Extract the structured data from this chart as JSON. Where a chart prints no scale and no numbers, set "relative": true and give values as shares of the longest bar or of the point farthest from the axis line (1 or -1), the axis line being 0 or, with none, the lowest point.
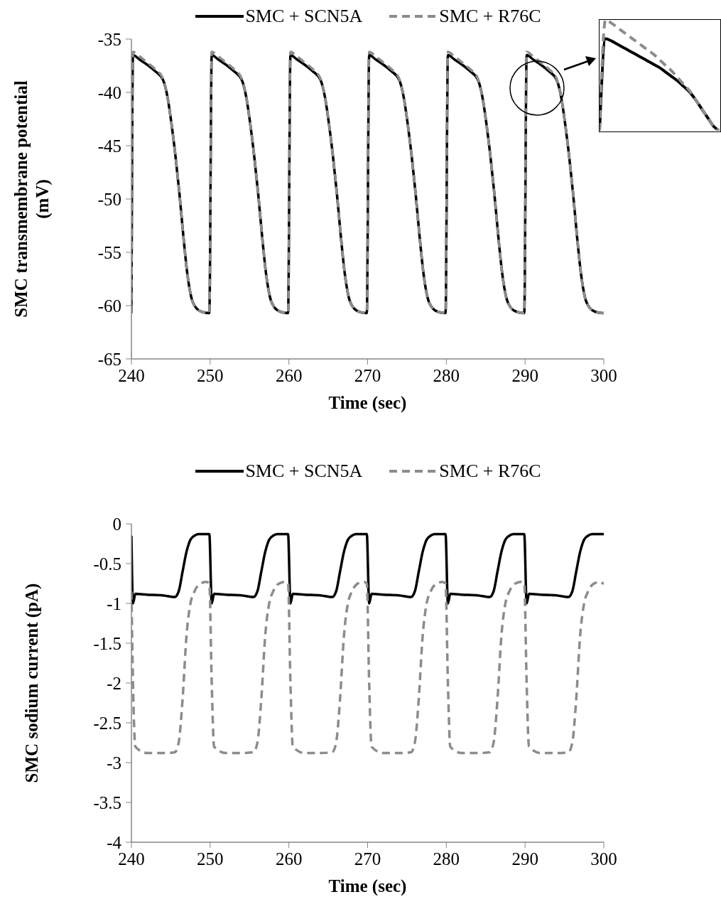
{
  "chart_data": [
    {
      "type": "line",
      "xlabel": "Time (sec)",
      "ylabel": "SMC transmembrane potential\n(mV)",
      "legend": "top",
      "xlim": [
        240,
        300
      ],
      "xticks": [
        240,
        250,
        260,
        270,
        280,
        290,
        300
      ],
      "ylim": [
        -65,
        -35
      ],
      "yticks": [
        -65,
        -60,
        -55,
        -50,
        -45,
        -40,
        -35
      ],
      "x": [
        240,
        240.2,
        241,
        242,
        243,
        244,
        244.6,
        245.1,
        245.6,
        246.1,
        246.6,
        247.1,
        247.6,
        248.2,
        249,
        249.9,
        250.2,
        251,
        252,
        253,
        254,
        254.6,
        255.1,
        255.6,
        256.1,
        256.6,
        257.1,
        257.6,
        258.2,
        259,
        259.9,
        260.2,
        261,
        262,
        263,
        264,
        264.6,
        265.1,
        265.6,
        266.1,
        266.6,
        267.1,
        267.6,
        268.2,
        269,
        269.9,
        270.2,
        271,
        272,
        273,
        274,
        274.6,
        275.1,
        275.6,
        276.1,
        276.6,
        277.1,
        277.6,
        278.2,
        279,
        279.9,
        280.2,
        281,
        282,
        283,
        284,
        284.6,
        285.1,
        285.6,
        286.1,
        286.6,
        287.1,
        287.6,
        288.2,
        289,
        289.9,
        290.2,
        291,
        292,
        293,
        294,
        294.6,
        295.1,
        295.6,
        296.1,
        296.6,
        297.1,
        297.6,
        298.2,
        299,
        299.9,
        300
      ],
      "series": [
        {
          "name": "SMC + SCN5A",
          "color": "#000000",
          "line_style": "solid",
          "values": [
            -60.7,
            -36.5,
            -36.9,
            -37.4,
            -38,
            -38.8,
            -40.5,
            -43,
            -46,
            -49.5,
            -53.5,
            -57,
            -59.2,
            -60.2,
            -60.6,
            -60.7,
            -36.5,
            -36.9,
            -37.4,
            -38,
            -38.8,
            -40.5,
            -43,
            -46,
            -49.5,
            -53.5,
            -57,
            -59.2,
            -60.2,
            -60.6,
            -60.7,
            -36.5,
            -36.9,
            -37.4,
            -38,
            -38.8,
            -40.5,
            -43,
            -46,
            -49.5,
            -53.5,
            -57,
            -59.2,
            -60.2,
            -60.6,
            -60.7,
            -36.5,
            -36.9,
            -37.4,
            -38,
            -38.8,
            -40.5,
            -43,
            -46,
            -49.5,
            -53.5,
            -57,
            -59.2,
            -60.2,
            -60.6,
            -60.7,
            -36.5,
            -36.9,
            -37.4,
            -38,
            -38.8,
            -40.5,
            -43,
            -46,
            -49.5,
            -53.5,
            -57,
            -59.2,
            -60.2,
            -60.6,
            -60.7,
            -36.5,
            -36.9,
            -37.4,
            -38,
            -38.8,
            -40.5,
            -43,
            -46,
            -49.5,
            -53.5,
            -57,
            -59.2,
            -60.2,
            -60.6,
            -60.7,
            -60.7
          ]
        },
        {
          "name": "SMC + R76C",
          "color": "#8c8c8c",
          "line_style": "dashed",
          "values": [
            -60.7,
            -36.2,
            -36.6,
            -37.2,
            -37.8,
            -38.7,
            -40.5,
            -43,
            -46,
            -49.5,
            -53.5,
            -57,
            -59.2,
            -60.2,
            -60.6,
            -60.7,
            -36.2,
            -36.6,
            -37.2,
            -37.8,
            -38.7,
            -40.5,
            -43,
            -46,
            -49.5,
            -53.5,
            -57,
            -59.2,
            -60.2,
            -60.6,
            -60.7,
            -36.2,
            -36.6,
            -37.2,
            -37.8,
            -38.7,
            -40.5,
            -43,
            -46,
            -49.5,
            -53.5,
            -57,
            -59.2,
            -60.2,
            -60.6,
            -60.7,
            -36.2,
            -36.6,
            -37.2,
            -37.8,
            -38.7,
            -40.5,
            -43,
            -46,
            -49.5,
            -53.5,
            -57,
            -59.2,
            -60.2,
            -60.6,
            -60.7,
            -36.2,
            -36.6,
            -37.2,
            -37.8,
            -38.7,
            -40.5,
            -43,
            -46,
            -49.5,
            -53.5,
            -57,
            -59.2,
            -60.2,
            -60.6,
            -60.7,
            -36.2,
            -36.6,
            -37.2,
            -37.8,
            -38.7,
            -40.5,
            -43,
            -46,
            -49.5,
            -53.5,
            -57,
            -59.2,
            -60.2,
            -60.6,
            -60.7,
            -60.7
          ]
        }
      ]
    },
    {
      "type": "line",
      "relative": true,
      "categories": [
        null,
        null,
        null,
        null,
        null,
        null,
        null,
        null,
        null,
        null,
        null,
        null,
        null,
        null,
        null,
        null,
        null,
        null,
        null,
        null,
        null
      ],
      "series": [
        {
          "color": "#000000",
          "line_style": "solid",
          "values": [
            0,
            0.83,
            0.81,
            0.78,
            0.75,
            0.72,
            0.69,
            0.66,
            0.63,
            0.6,
            0.57,
            0.53,
            0.49,
            0.45,
            0.4,
            0.35,
            0.28,
            0.2,
            0.12,
            0.04,
            0
          ]
        },
        {
          "color": "#8c8c8c",
          "line_style": "dashed",
          "values": [
            0,
            1,
            0.97,
            0.93,
            0.89,
            0.85,
            0.81,
            0.77,
            0.73,
            0.69,
            0.64,
            0.59,
            0.54,
            0.48,
            0.42,
            0.36,
            0.28,
            0.2,
            0.12,
            0.04,
            0
          ]
        }
      ]
    },
    {
      "type": "line",
      "xlabel": "Time (sec)",
      "ylabel": "SMC sodium current (pA)",
      "legend": "top",
      "xlim": [
        240,
        300
      ],
      "xticks": [
        240,
        250,
        260,
        270,
        280,
        290,
        300
      ],
      "ylim": [
        -4,
        0
      ],
      "yticks": [
        -4,
        -3.5,
        -3,
        -2.5,
        -2,
        -1.5,
        -1,
        -0.5,
        0
      ],
      "x": [
        240,
        240.2,
        240.5,
        242,
        244,
        245.5,
        246,
        246.5,
        247,
        247.5,
        248,
        248.5,
        249,
        249.5,
        249.9,
        250.2,
        250.5,
        252,
        254,
        255.5,
        256,
        256.5,
        257,
        257.5,
        258,
        258.5,
        259,
        259.5,
        259.9,
        260.2,
        260.5,
        262,
        264,
        265.5,
        266,
        266.5,
        267,
        267.5,
        268,
        268.5,
        269,
        269.5,
        269.9,
        270.2,
        270.5,
        272,
        274,
        275.5,
        276,
        276.5,
        277,
        277.5,
        278,
        278.5,
        279,
        279.5,
        279.9,
        280.2,
        280.5,
        282,
        284,
        285.5,
        286,
        286.5,
        287,
        287.5,
        288,
        288.5,
        289,
        289.5,
        289.9,
        290.2,
        290.5,
        292,
        294,
        295.5,
        296,
        296.5,
        297,
        297.5,
        298,
        298.5,
        299,
        299.5,
        299.9,
        300
      ],
      "series": [
        {
          "name": "SMC + SCN5A",
          "color": "#000000",
          "line_style": "solid",
          "values": [
            -0.15,
            -1,
            -0.88,
            -0.89,
            -0.9,
            -0.92,
            -0.85,
            -0.6,
            -0.35,
            -0.2,
            -0.15,
            -0.13,
            -0.13,
            -0.13,
            -0.13,
            -1,
            -0.88,
            -0.89,
            -0.9,
            -0.92,
            -0.85,
            -0.6,
            -0.35,
            -0.2,
            -0.15,
            -0.13,
            -0.13,
            -0.13,
            -0.13,
            -1,
            -0.88,
            -0.89,
            -0.9,
            -0.92,
            -0.85,
            -0.6,
            -0.35,
            -0.2,
            -0.15,
            -0.13,
            -0.13,
            -0.13,
            -0.13,
            -1,
            -0.88,
            -0.89,
            -0.9,
            -0.92,
            -0.85,
            -0.6,
            -0.35,
            -0.2,
            -0.15,
            -0.13,
            -0.13,
            -0.13,
            -0.13,
            -1,
            -0.88,
            -0.89,
            -0.9,
            -0.92,
            -0.85,
            -0.6,
            -0.35,
            -0.2,
            -0.15,
            -0.13,
            -0.13,
            -0.13,
            -0.13,
            -1,
            -0.88,
            -0.89,
            -0.9,
            -0.92,
            -0.85,
            -0.6,
            -0.35,
            -0.2,
            -0.15,
            -0.13,
            -0.13,
            -0.13,
            -0.13,
            -0.13
          ]
        },
        {
          "name": "SMC + R76C",
          "color": "#8c8c8c",
          "line_style": "dashed",
          "values": [
            -0.85,
            -2,
            -2.8,
            -2.88,
            -2.88,
            -2.87,
            -2.75,
            -2.2,
            -1.4,
            -1,
            -0.85,
            -0.77,
            -0.74,
            -0.73,
            -0.75,
            -2,
            -2.8,
            -2.88,
            -2.88,
            -2.87,
            -2.75,
            -2.2,
            -1.4,
            -1,
            -0.85,
            -0.77,
            -0.74,
            -0.73,
            -0.75,
            -2,
            -2.8,
            -2.88,
            -2.88,
            -2.87,
            -2.75,
            -2.2,
            -1.4,
            -1,
            -0.85,
            -0.77,
            -0.74,
            -0.73,
            -0.75,
            -2,
            -2.8,
            -2.88,
            -2.88,
            -2.87,
            -2.75,
            -2.2,
            -1.4,
            -1,
            -0.85,
            -0.77,
            -0.74,
            -0.73,
            -0.75,
            -2,
            -2.8,
            -2.88,
            -2.88,
            -2.87,
            -2.75,
            -2.2,
            -1.4,
            -1,
            -0.85,
            -0.77,
            -0.74,
            -0.73,
            -0.75,
            -2,
            -2.8,
            -2.88,
            -2.88,
            -2.87,
            -2.75,
            -2.2,
            -1.4,
            -1,
            -0.85,
            -0.77,
            -0.74,
            -0.73,
            -0.75,
            -0.73
          ]
        }
      ]
    }
  ]
}
